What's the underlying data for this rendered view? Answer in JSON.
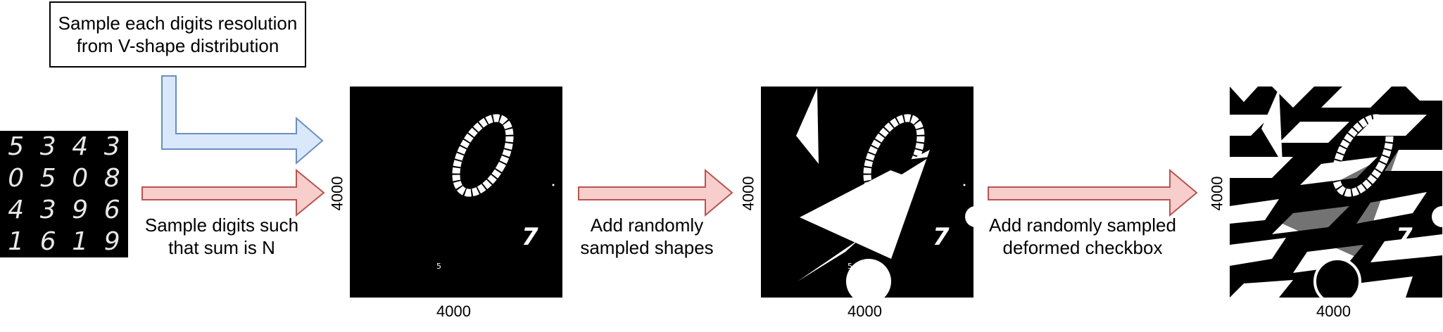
{
  "notes": {
    "resolution_box": "Sample each digits resolution from V-shape distribution"
  },
  "steps": [
    {
      "label": "Sample digits such that sum is N"
    },
    {
      "label": "Add randomly sampled shapes"
    },
    {
      "label": "Add randomly sampled deformed checkbox"
    }
  ],
  "mnist_digits": [
    "5",
    "3",
    "4",
    "3",
    "0",
    "5",
    "0",
    "8",
    "4",
    "3",
    "9",
    "6",
    "1",
    "6",
    "1",
    "9"
  ],
  "canvas_digits": {
    "large": "0",
    "medium": "7",
    "small": "5"
  },
  "panels": [
    {
      "width_label": "4000",
      "height_label": "4000"
    },
    {
      "width_label": "4000",
      "height_label": "4000"
    },
    {
      "width_label": "4000",
      "height_label": "4000"
    }
  ],
  "colors": {
    "blue_arrow_fill": "#dae8fc",
    "blue_arrow_stroke": "#6c8ebf",
    "red_arrow_fill": "#f8cecc",
    "red_arrow_stroke": "#b85450"
  }
}
